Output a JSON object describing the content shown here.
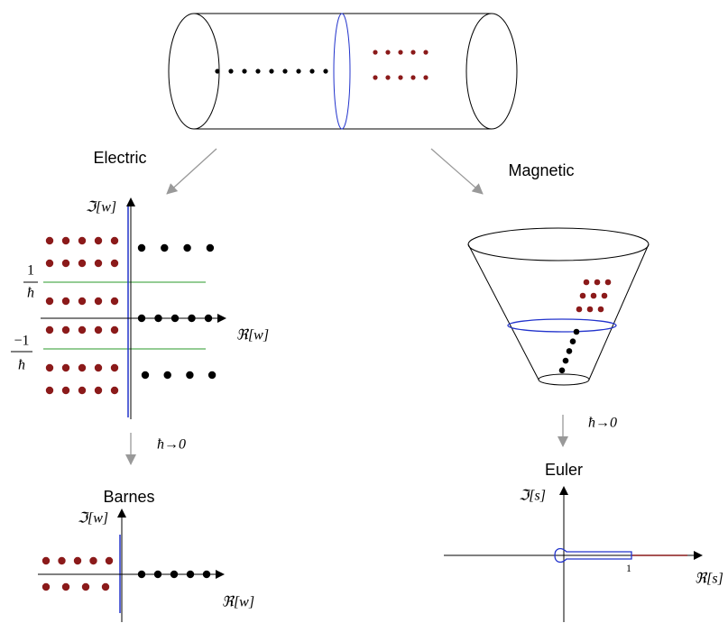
{
  "labels": {
    "electric": "Electric",
    "magnetic": "Magnetic",
    "barnes": "Barnes",
    "euler": "Euler"
  },
  "electric_plane": {
    "imag_axis": "ℑ[w]",
    "real_axis": "ℜ[w]",
    "upper_level": {
      "numerator": "1",
      "denominator": "ħ"
    },
    "lower_level": {
      "numerator": "−1",
      "denominator": "ħ"
    }
  },
  "electric_limit": "ħ→0",
  "magnetic_limit": "ħ→0",
  "barnes_plane": {
    "imag_axis": "ℑ[w]",
    "real_axis": "ℜ[w]"
  },
  "euler_plane": {
    "imag_axis": "ℑ[s]",
    "real_axis": "ℜ[s]",
    "tick": "1"
  }
}
